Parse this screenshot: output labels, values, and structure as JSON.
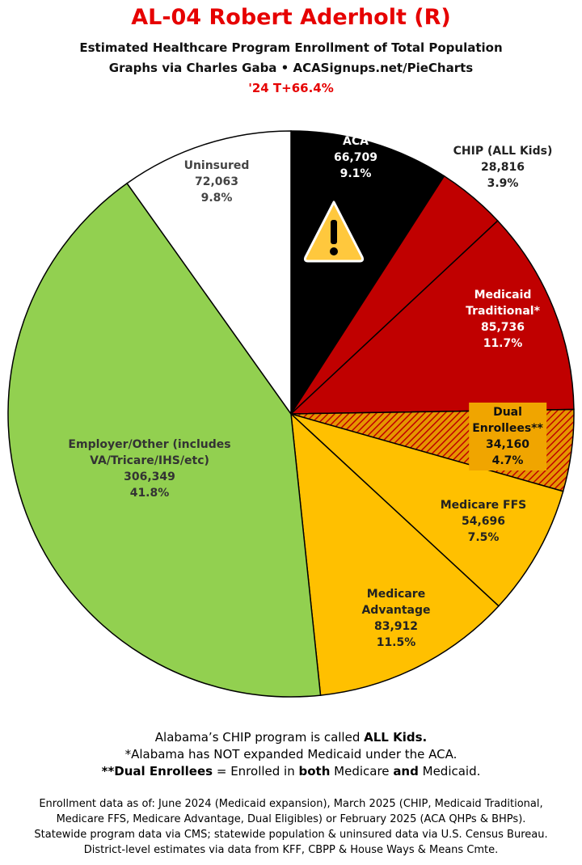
{
  "chart_data": {
    "type": "pie",
    "title": "AL-04 Robert Aderholt (R)",
    "subtitle": [
      "Estimated Healthcare Program Enrollment of Total Population",
      "Graphs via Charles Gaba  •  ACASignups.net/PieCharts",
      "'24 T+66.4%"
    ],
    "categories": [
      "ACA",
      "CHIP (ALL Kids)",
      "Medicaid Traditional*",
      "Dual Enrollees**",
      "Medicare FFS",
      "Medicare Advantage",
      "Employer/Other (includes VA/Tricare/IHS/etc)",
      "Uninsured"
    ],
    "values": [
      66709,
      28816,
      85736,
      34160,
      54696,
      83912,
      306349,
      72063
    ],
    "value_labels": [
      "66,709",
      "28,816",
      "85,736",
      "34,160",
      "54,696",
      "83,912",
      "306,349",
      "72,063"
    ],
    "percents": [
      9.1,
      3.9,
      11.7,
      4.7,
      7.5,
      11.5,
      41.8,
      9.8
    ],
    "percent_labels": [
      "9.1%",
      "3.9%",
      "11.7%",
      "4.7%",
      "7.5%",
      "11.5%",
      "41.8%",
      "9.8%"
    ],
    "colors": [
      "#000000",
      "#c00000",
      "#c00000",
      "hatch",
      "#ffc000",
      "#ffc000",
      "#92d050",
      "#ffffff"
    ],
    "notes": [
      [
        {
          "text": "Alabama’s CHIP program is called ",
          "bold": false
        },
        {
          "text": "ALL Kids.",
          "bold": true
        }
      ],
      [
        {
          "text": "*Alabama has NOT expanded Medicaid under the ACA.",
          "bold": false
        }
      ],
      [
        {
          "text": "**Dual Enrollees",
          "bold": true
        },
        {
          "text": " = Enrolled in ",
          "bold": false
        },
        {
          "text": "both",
          "bold": true
        },
        {
          "text": " Medicare ",
          "bold": false
        },
        {
          "text": "and",
          "bold": true
        },
        {
          "text": " Medicaid.",
          "bold": false
        }
      ]
    ],
    "sources": [
      "Enrollment data as of: June 2024 (Medicaid expansion), March 2025 (CHIP, Medicaid Traditional,",
      "Medicare FFS, Medicare Advantage, Dual Eligibles) or February 2025 (ACA QHPs & BHPs).",
      "Statewide program data via CMS; statewide population & uninsured data via U.S. Census Bureau.",
      "District-level estimates via data from KFF, CBPP & House Ways & Means Cmte."
    ]
  }
}
